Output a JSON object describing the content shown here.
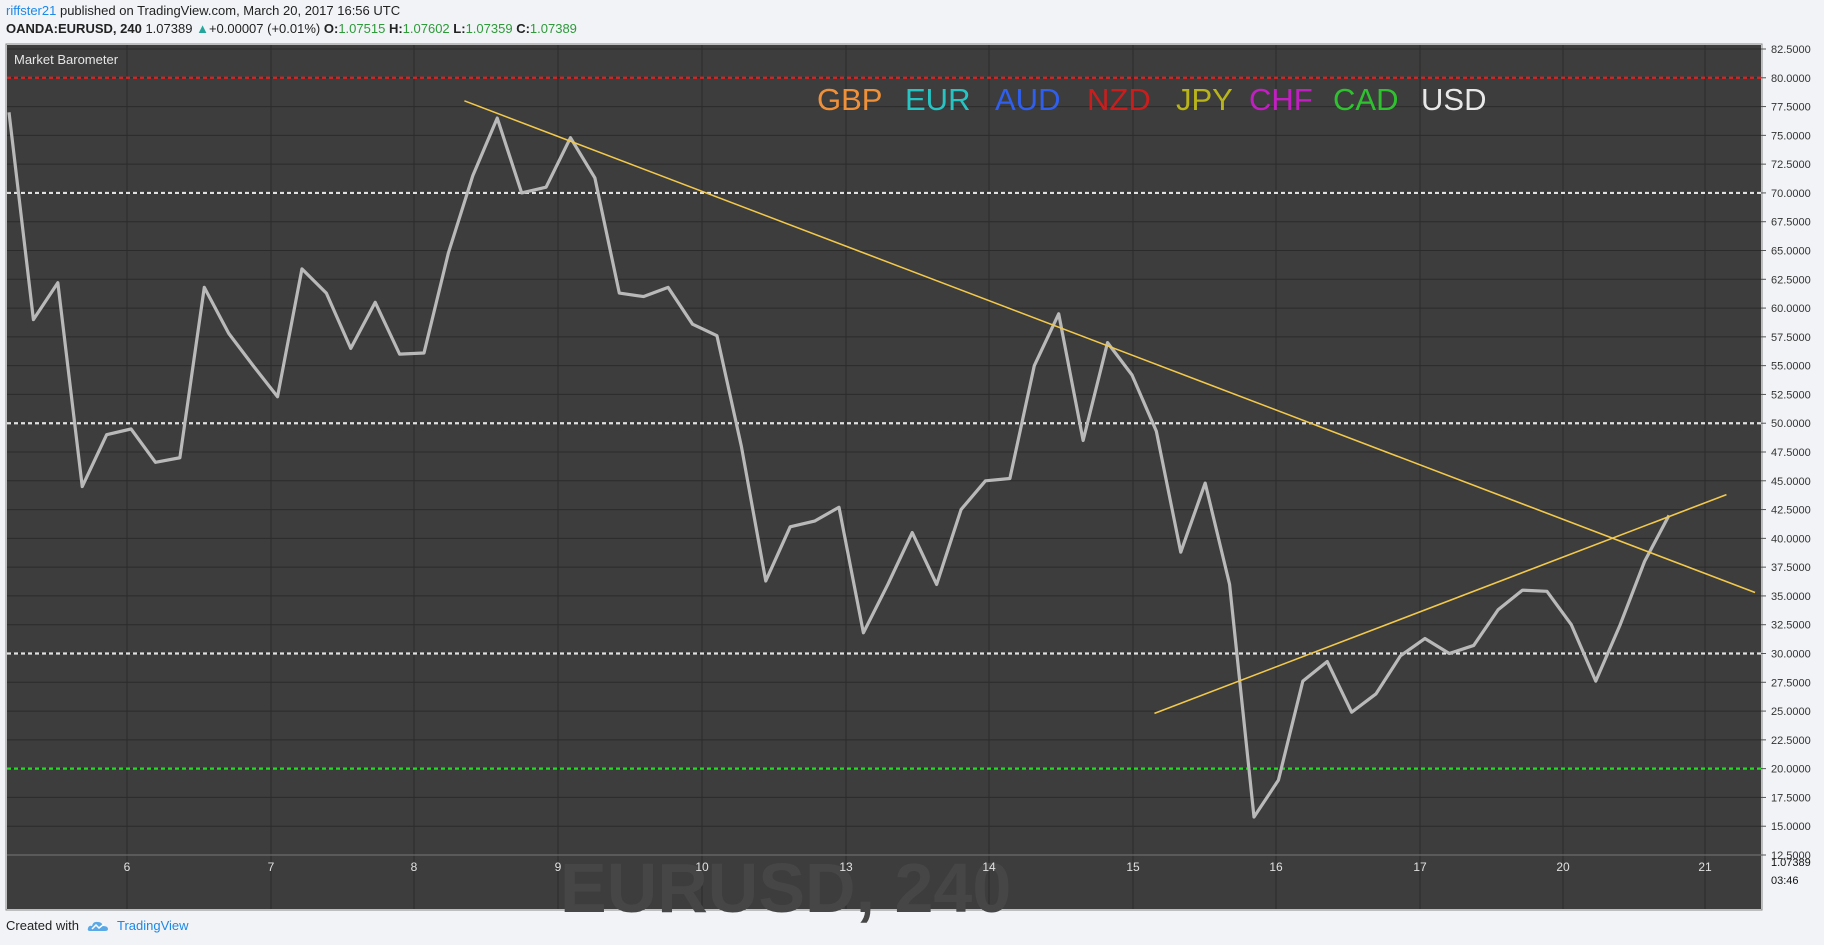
{
  "header": {
    "user": "riffster21",
    "published_text": "published on TradingView.com, March 20, 2017 16:56 UTC",
    "symbol": "OANDA:EURUSD, 240",
    "last": "1.07389",
    "change": "+0.00007 (+0.01%)",
    "open_label": "O:",
    "open": "1.07515",
    "high_label": "H:",
    "high": "1.07602",
    "low_label": "L:",
    "low": "1.07359",
    "close_label": "C:",
    "close": "1.07389",
    "up_icon": "triangle-up-icon"
  },
  "footer": {
    "created_with": "Created with",
    "brand": "TradingView",
    "logo_icon": "tradingview-cloud-icon"
  },
  "chart_data": {
    "type": "line",
    "indicator_name": "Market Barometer",
    "ylim": [
      12.5,
      82.5
    ],
    "y_ticks": [
      "82.5000",
      "80.0000",
      "77.5000",
      "75.0000",
      "72.5000",
      "70.0000",
      "67.5000",
      "65.0000",
      "62.5000",
      "60.0000",
      "57.5000",
      "55.0000",
      "52.5000",
      "50.0000",
      "47.5000",
      "45.0000",
      "42.5000",
      "40.0000",
      "37.5000",
      "35.0000",
      "32.5000",
      "30.0000",
      "27.5000",
      "25.0000",
      "22.5000",
      "20.0000",
      "17.5000",
      "15.0000",
      "12.5000"
    ],
    "x_ticks": [
      "6",
      "7",
      "8",
      "9",
      "10",
      "13",
      "14",
      "15",
      "16",
      "17",
      "20",
      "21"
    ],
    "legend": [
      {
        "name": "GBP",
        "color": "#f0913a"
      },
      {
        "name": "EUR",
        "color": "#27c4c4"
      },
      {
        "name": "AUD",
        "color": "#2f5ff0"
      },
      {
        "name": "NZD",
        "color": "#cc1d1d"
      },
      {
        "name": "JPY",
        "color": "#b8b41a"
      },
      {
        "name": "CHF",
        "color": "#c21fc2"
      },
      {
        "name": "CAD",
        "color": "#2fc22f"
      },
      {
        "name": "USD",
        "color": "#e8e8e8"
      }
    ],
    "series": [
      {
        "color": "#b9b9b9",
        "values": [
          77,
          59,
          62.2,
          44.5,
          49,
          49.5,
          46.6,
          47,
          61.8,
          57.8,
          55,
          52.3,
          63.4,
          61.3,
          56.5,
          60.5,
          56,
          56.1,
          64.8,
          71.5,
          76.5,
          70,
          70.5,
          74.8,
          71.3,
          61.3,
          61,
          61.8,
          58.6,
          57.6,
          48,
          36.3,
          41,
          41.5,
          42.7,
          31.8,
          36,
          40.5,
          36,
          42.5,
          45,
          45.2,
          55,
          59.5,
          48.5,
          57,
          54.2,
          49.3,
          38.8,
          44.8,
          36,
          15.8,
          19,
          27.6,
          29.3,
          24.9,
          26.5,
          29.8,
          31.3,
          30,
          30.7,
          33.8,
          35.5,
          35.4,
          32.5,
          27.6,
          32.5,
          38,
          42
        ]
      }
    ],
    "horizontal_levels": [
      {
        "value": 80,
        "color": "#e02020"
      },
      {
        "value": 70,
        "color": "#e0e0e0"
      },
      {
        "value": 50,
        "color": "#e0e0e0"
      },
      {
        "value": 30,
        "color": "#e0e0e0"
      },
      {
        "value": 20,
        "color": "#22dd22"
      }
    ],
    "trendlines": [
      {
        "color": "#f2c94c",
        "points": [
          [
            8.35,
            78
          ],
          [
            21.35,
            35.3
          ]
        ]
      },
      {
        "color": "#f2c94c",
        "points": [
          [
            15.15,
            24.8
          ],
          [
            21.15,
            43.8
          ]
        ]
      }
    ],
    "price_scale_label": "1.07389",
    "countdown": "03:46",
    "watermark": "EURUSD, 240"
  },
  "colors": {
    "panel_bg": "#3d3d3d",
    "grid": "#2b2b2b",
    "axis_text": "#333333"
  }
}
